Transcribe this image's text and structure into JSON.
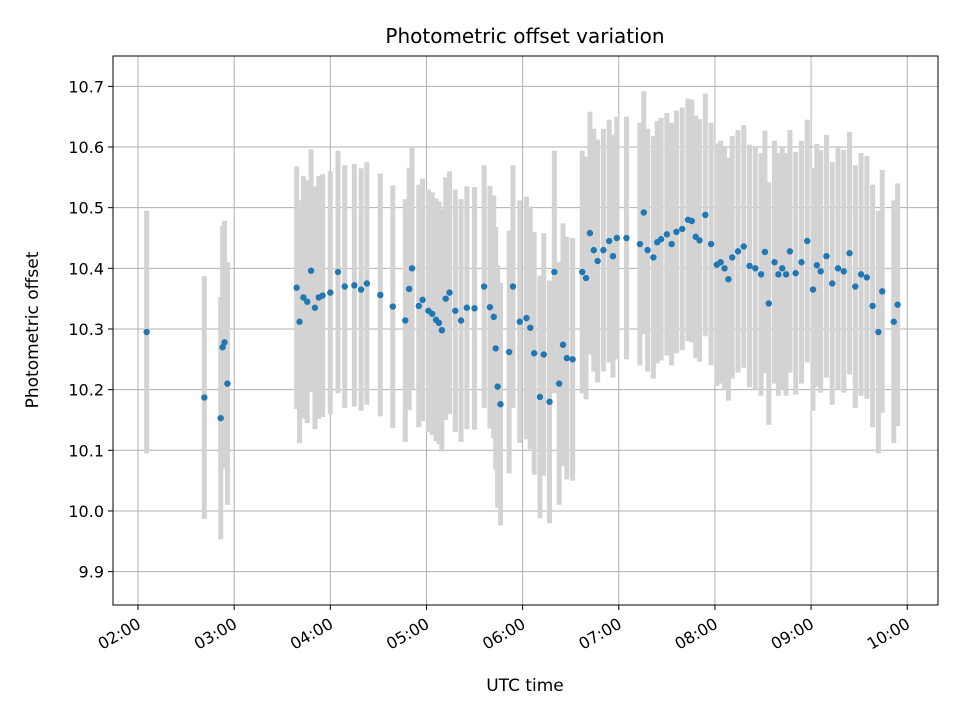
{
  "chart_data": {
    "type": "scatter",
    "title": "Photometric offset variation",
    "xlabel": "UTC time",
    "ylabel": "Photometric offset",
    "x_unit": "UTC hour",
    "xlim": [
      1.74,
      10.32
    ],
    "ylim": [
      9.845,
      10.75
    ],
    "x_ticks": [
      2,
      3,
      4,
      5,
      6,
      7,
      8,
      9,
      10
    ],
    "x_tick_labels": [
      "02:00",
      "03:00",
      "04:00",
      "05:00",
      "06:00",
      "07:00",
      "08:00",
      "09:00",
      "10:00"
    ],
    "y_ticks": [
      9.9,
      10.0,
      10.1,
      10.2,
      10.3,
      10.4,
      10.5,
      10.6,
      10.7
    ],
    "y_tick_labels": [
      "9.9",
      "10.0",
      "10.1",
      "10.2",
      "10.3",
      "10.4",
      "10.5",
      "10.6",
      "10.7"
    ],
    "grid": true,
    "error_bar_half_width": 0.2,
    "colors": {
      "points": "#1f77b4",
      "error_bars": "#d3d3d3",
      "grid": "#b0b0b0",
      "axes": "#000000"
    },
    "series": [
      {
        "marker": "dot",
        "error_bars": true,
        "x": [
          2.09,
          2.69,
          2.86,
          2.88,
          2.9,
          2.93,
          3.65,
          3.68,
          3.72,
          3.76,
          3.8,
          3.84,
          3.88,
          3.92,
          4.0,
          4.08,
          4.15,
          4.25,
          4.32,
          4.38,
          4.52,
          4.65,
          4.78,
          4.82,
          4.85,
          4.92,
          4.96,
          5.02,
          5.06,
          5.1,
          5.13,
          5.16,
          5.2,
          5.24,
          5.3,
          5.36,
          5.42,
          5.5,
          5.6,
          5.66,
          5.7,
          5.72,
          5.74,
          5.77,
          5.86,
          5.9,
          5.97,
          6.04,
          6.08,
          6.12,
          6.18,
          6.22,
          6.28,
          6.33,
          6.38,
          6.42,
          6.46,
          6.52,
          6.62,
          6.66,
          6.7,
          6.74,
          6.78,
          6.84,
          6.9,
          6.94,
          6.98,
          7.08,
          7.22,
          7.26,
          7.3,
          7.36,
          7.4,
          7.44,
          7.5,
          7.55,
          7.6,
          7.66,
          7.72,
          7.76,
          7.8,
          7.84,
          7.9,
          7.96,
          8.02,
          8.06,
          8.1,
          8.14,
          8.18,
          8.24,
          8.3,
          8.36,
          8.42,
          8.48,
          8.52,
          8.56,
          8.62,
          8.66,
          8.7,
          8.74,
          8.78,
          8.84,
          8.9,
          8.96,
          9.02,
          9.06,
          9.1,
          9.16,
          9.22,
          9.28,
          9.34,
          9.4,
          9.46,
          9.52,
          9.58,
          9.64,
          9.7,
          9.74,
          9.86,
          9.9
        ],
        "y": [
          10.295,
          10.187,
          10.153,
          10.27,
          10.278,
          10.21,
          10.368,
          10.312,
          10.352,
          10.345,
          10.396,
          10.335,
          10.352,
          10.355,
          10.36,
          10.394,
          10.37,
          10.372,
          10.365,
          10.375,
          10.356,
          10.337,
          10.314,
          10.366,
          10.4,
          10.338,
          10.348,
          10.33,
          10.325,
          10.315,
          10.31,
          10.298,
          10.35,
          10.36,
          10.33,
          10.314,
          10.335,
          10.334,
          10.37,
          10.336,
          10.32,
          10.268,
          10.205,
          10.176,
          10.262,
          10.37,
          10.312,
          10.318,
          10.302,
          10.26,
          10.188,
          10.258,
          10.18,
          10.394,
          10.21,
          10.274,
          10.252,
          10.25,
          10.394,
          10.384,
          10.458,
          10.43,
          10.412,
          10.43,
          10.445,
          10.42,
          10.45,
          10.45,
          10.44,
          10.492,
          10.43,
          10.418,
          10.443,
          10.448,
          10.456,
          10.44,
          10.46,
          10.465,
          10.48,
          10.478,
          10.452,
          10.446,
          10.488,
          10.44,
          10.406,
          10.41,
          10.4,
          10.382,
          10.418,
          10.428,
          10.436,
          10.404,
          10.4,
          10.39,
          10.427,
          10.342,
          10.41,
          10.39,
          10.4,
          10.39,
          10.428,
          10.392,
          10.41,
          10.445,
          10.365,
          10.405,
          10.395,
          10.42,
          10.375,
          10.4,
          10.395,
          10.425,
          10.37,
          10.39,
          10.385,
          10.338,
          10.295,
          10.362,
          10.312,
          10.34
        ]
      }
    ]
  }
}
